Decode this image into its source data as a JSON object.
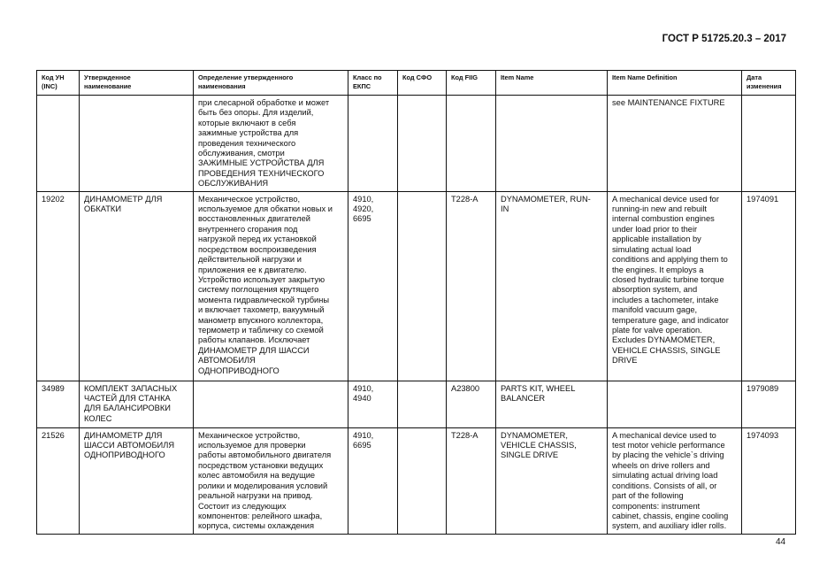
{
  "document": {
    "title": "ГОСТ Р 51725.20.3 – 2017",
    "page_number": "44"
  },
  "table": {
    "headers": [
      "Код УН\n(INC)",
      "Утвержденное\nнаименование",
      "Определение утвержденного\nнаименования",
      "Класс по\nЕКПС",
      "Код СФО",
      "Код FIIG",
      "Item Name",
      "Item Name Definition",
      "Дата\nизменения"
    ],
    "rows": [
      [
        "",
        "",
        "при слесарной обработке и может\nбыть без опоры. Для изделий,\nкоторые включают в себя\nзажимные устройства для\nпроведения технического\nобслуживания, смотри\nЗАЖИМНЫЕ УСТРОЙСТВА ДЛЯ\nПРОВЕДЕНИЯ ТЕХНИЧЕСКОГО\nОБСЛУЖИВАНИЯ",
        "",
        "",
        "",
        "",
        "see MAINTENANCE FIXTURE",
        ""
      ],
      [
        "19202",
        "ДИНАМОМЕТР ДЛЯ\nОБКАТКИ",
        "Механическое устройство,\nиспользуемое для обкатки новых и\nвосстановленных двигателей\nвнутреннего сгорания под\nнагрузкой перед их установкой\nпосредством воспроизведения\nдействительной нагрузки и\nприложения ее к двигателю.\nУстройство использует закрытую\nсистему поглощения крутящего\nмомента гидравлической турбины\nи включает тахометр, вакуумный\nманометр впускного коллектора,\nтермометр и табличку со схемой\nработы клапанов. Исключает\nДИНАМОМЕТР ДЛЯ ШАССИ\nАВТОМОБИЛЯ\nОДНОПРИВОДНОГО",
        "4910,\n4920,\n6695",
        "",
        "T228-A",
        "DYNAMOMETER, RUN-\nIN",
        "A mechanical device used for\nrunning-in new and rebuilt\ninternal combustion engines\nunder load prior to their\napplicable installation by\nsimulating actual load\nconditions and applying them to\nthe engines. It employs a\nclosed hydraulic turbine torque\nabsorption system, and\nincludes a tachometer, intake\nmanifold vacuum gage,\ntemperature gage, and indicator\nplate for valve operation.\nExcludes DYNAMOMETER,\nVEHICLE CHASSIS, SINGLE\nDRIVE",
        "1974091"
      ],
      [
        "34989",
        "КОМПЛЕКТ ЗАПАСНЫХ\nЧАСТЕЙ ДЛЯ СТАНКА\nДЛЯ БАЛАНСИРОВКИ\nКОЛЕС",
        "",
        "4910,\n4940",
        "",
        "A23800",
        "PARTS KIT, WHEEL\nBALANCER",
        "",
        "1979089"
      ],
      [
        "21526",
        "ДИНАМОМЕТР ДЛЯ\nШАССИ АВТОМОБИЛЯ\nОДНОПРИВОДНОГО",
        "Механическое устройство,\nиспользуемое для проверки\nработы автомобильного двигателя\nпосредством установки ведущих\nколес автомобиля на ведущие\nролики и моделирования условий\nреальной нагрузки на привод.\nСостоит из следующих\nкомпонентов: релейного шкафа,\nкорпуса, системы охлаждения",
        "4910,\n6695",
        "",
        "T228-A",
        "DYNAMOMETER,\nVEHICLE CHASSIS,\nSINGLE DRIVE",
        "A mechanical device used to\ntest motor vehicle performance\nby placing the vehicle`s driving\nwheels on drive rollers and\nsimulating actual driving load\nconditions. Consists of all, or\npart of the following\ncomponents: instrument\ncabinet, chassis, engine cooling\nsystem, and auxiliary idler rolls.",
        "1974093"
      ]
    ]
  }
}
